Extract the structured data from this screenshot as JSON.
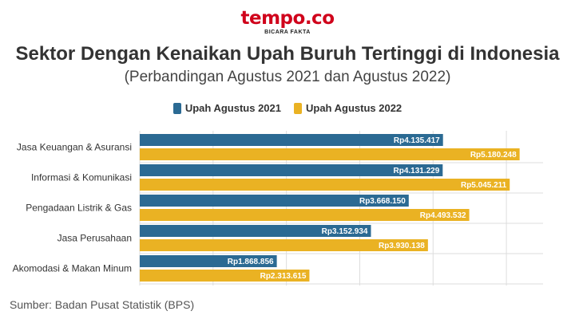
{
  "brand": {
    "name": "tempo.co",
    "tagline": "BICARA FAKTA"
  },
  "source": "Sumber: Badan Pusat Statistik (BPS)",
  "colors": {
    "series1": "#2b6a93",
    "series2": "#eab223",
    "brand": "#d0021b",
    "grid": "#dddddd"
  },
  "chart_data": {
    "type": "bar",
    "orientation": "horizontal",
    "title": "Sektor Dengan Kenaikan Upah Buruh Tertinggi di Indonesia",
    "subtitle": "(Perbandingan Agustus 2021 dan Agustus 2022)",
    "categories": [
      "Jasa Keuangan & Asuransi",
      "Informasi & Komunikasi",
      "Pengadaan Listrik & Gas",
      "Jasa Perusahaan",
      "Akomodasi & Makan Minum"
    ],
    "series": [
      {
        "name": "Upah Agustus 2021",
        "values": [
          4135417,
          4131229,
          3668150,
          3152934,
          1868856
        ],
        "labels": [
          "Rp4.135.417",
          "Rp4.131.229",
          "Rp3.668.150",
          "Rp3.152.934",
          "Rp1.868.856"
        ]
      },
      {
        "name": "Upah Agustus 2022",
        "values": [
          5180248,
          5045211,
          4493532,
          3930138,
          2313615
        ],
        "labels": [
          "Rp5.180.248",
          "Rp5.045.211",
          "Rp4.493.532",
          "Rp3.930.138",
          "Rp2.313.615"
        ]
      }
    ],
    "xlim": [
      0,
      5500000
    ],
    "grid": true,
    "legend_position": "top-center"
  }
}
